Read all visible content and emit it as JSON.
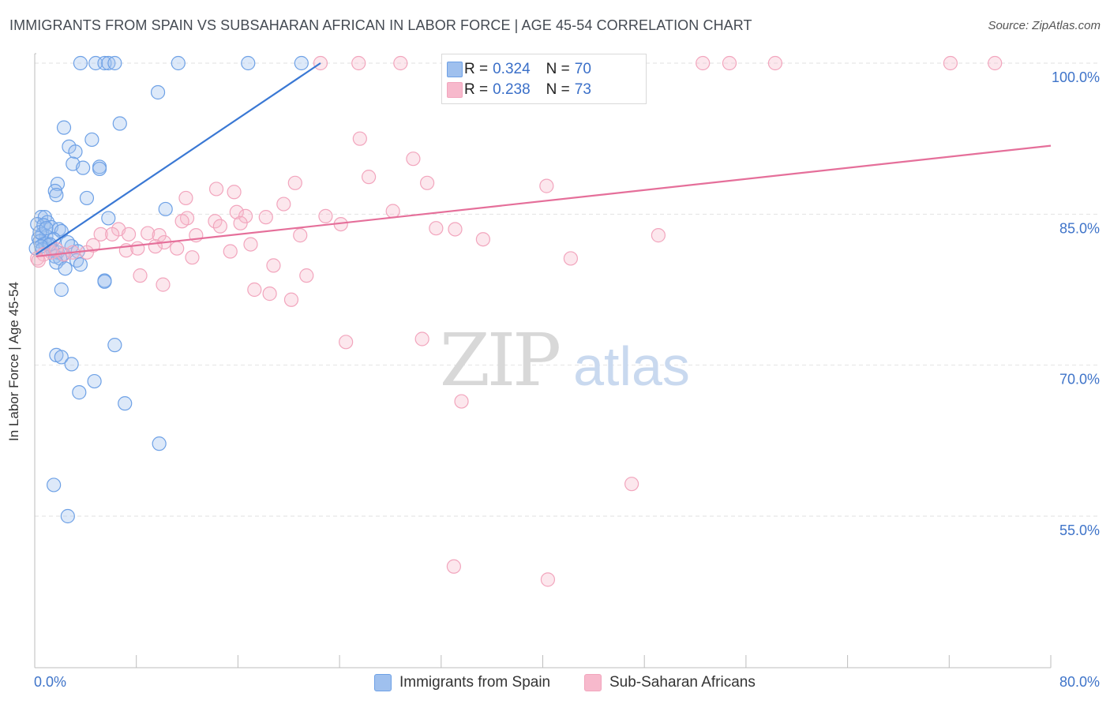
{
  "title": "IMMIGRANTS FROM SPAIN VS SUBSAHARAN AFRICAN IN LABOR FORCE | AGE 45-54 CORRELATION CHART",
  "source": "Source: ZipAtlas.com",
  "watermark": {
    "zip": "ZIP",
    "atlas": "atlas"
  },
  "legend_top": {
    "r_label": "R =",
    "n_label": "N =",
    "rows": [
      {
        "r": "0.324",
        "n": "70",
        "color": "#9fc0ee"
      },
      {
        "r": "0.238",
        "n": "73",
        "color": "#f7b9cc"
      }
    ]
  },
  "legend_bottom": [
    {
      "label": "Immigrants from Spain",
      "color": "#9fc0ee"
    },
    {
      "label": "Sub-Saharan Africans",
      "color": "#f7b9cc"
    }
  ],
  "chart_data": {
    "type": "scatter",
    "title": "IMMIGRANTS FROM SPAIN VS SUBSAHARAN AFRICAN IN LABOR FORCE | AGE 45-54 CORRELATION CHART",
    "xlabel": "",
    "ylabel": "In Labor Force | Age 45-54",
    "xlim": [
      0,
      80
    ],
    "ylim": [
      41,
      101
    ],
    "x_tick_labels": [
      {
        "value": 0,
        "label": "0.0%"
      },
      {
        "value": 80,
        "label": "80.0%"
      }
    ],
    "y_tick_labels": [
      {
        "value": 100,
        "label": "100.0%"
      },
      {
        "value": 85,
        "label": "85.0%"
      },
      {
        "value": 70,
        "label": "70.0%"
      },
      {
        "value": 55,
        "label": "55.0%"
      }
    ],
    "grid": true,
    "series": [
      {
        "name": "Immigrants from Spain",
        "color": "#6ea1e6",
        "trend_color": "#3a78d4",
        "trend": {
          "x": [
            0.1,
            22.5
          ],
          "y": [
            81.0,
            100.0
          ]
        },
        "points": [
          [
            3.6,
            100
          ],
          [
            4.8,
            100
          ],
          [
            5.5,
            100
          ],
          [
            5.8,
            100
          ],
          [
            6.3,
            100
          ],
          [
            11.3,
            100
          ],
          [
            16.8,
            100
          ],
          [
            21.0,
            100
          ],
          [
            9.7,
            97.1
          ],
          [
            6.7,
            94.0
          ],
          [
            2.3,
            93.6
          ],
          [
            4.5,
            92.4
          ],
          [
            2.7,
            91.7
          ],
          [
            3.2,
            91.2
          ],
          [
            3.0,
            90.0
          ],
          [
            5.1,
            89.7
          ],
          [
            3.8,
            89.6
          ],
          [
            5.1,
            89.5
          ],
          [
            1.8,
            88.0
          ],
          [
            1.6,
            87.3
          ],
          [
            1.7,
            86.9
          ],
          [
            4.1,
            86.6
          ],
          [
            10.3,
            85.5
          ],
          [
            0.5,
            84.7
          ],
          [
            0.8,
            84.7
          ],
          [
            5.8,
            84.6
          ],
          [
            1.0,
            84.2
          ],
          [
            0.2,
            84.0
          ],
          [
            0.7,
            83.9
          ],
          [
            1.3,
            83.7
          ],
          [
            1.9,
            83.5
          ],
          [
            2.1,
            83.3
          ],
          [
            0.6,
            83.0
          ],
          [
            0.9,
            82.8
          ],
          [
            0.3,
            82.6
          ],
          [
            1.5,
            82.5
          ],
          [
            0.4,
            82.3
          ],
          [
            0.8,
            82.1
          ],
          [
            1.1,
            81.9
          ],
          [
            2.9,
            81.8
          ],
          [
            0.1,
            81.6
          ],
          [
            0.6,
            81.5
          ],
          [
            1.4,
            81.4
          ],
          [
            3.4,
            81.3
          ],
          [
            1.8,
            81.2
          ],
          [
            2.2,
            81.0
          ],
          [
            1.6,
            80.8
          ],
          [
            2.0,
            80.6
          ],
          [
            3.3,
            80.4
          ],
          [
            1.7,
            80.2
          ],
          [
            3.6,
            80.0
          ],
          [
            2.4,
            79.6
          ],
          [
            5.5,
            78.4
          ],
          [
            5.5,
            78.3
          ],
          [
            2.1,
            77.5
          ],
          [
            6.3,
            72.0
          ],
          [
            1.7,
            71.0
          ],
          [
            2.1,
            70.8
          ],
          [
            2.9,
            70.1
          ],
          [
            4.7,
            68.4
          ],
          [
            3.5,
            67.3
          ],
          [
            7.1,
            66.2
          ],
          [
            9.8,
            62.2
          ],
          [
            1.5,
            58.1
          ],
          [
            2.6,
            55.0
          ],
          [
            0.4,
            83.2
          ],
          [
            1.2,
            82.0
          ],
          [
            0.9,
            83.6
          ],
          [
            0.5,
            81.8
          ],
          [
            2.6,
            82.2
          ]
        ]
      },
      {
        "name": "Sub-Saharan Africans",
        "color": "#f2a5bd",
        "trend_color": "#e56f9a",
        "trend": {
          "x": [
            0.1,
            80.0
          ],
          "y": [
            80.8,
            91.8
          ]
        },
        "points": [
          [
            22.5,
            100
          ],
          [
            25.5,
            100
          ],
          [
            28.8,
            100
          ],
          [
            43.5,
            100
          ],
          [
            52.6,
            100
          ],
          [
            54.7,
            100
          ],
          [
            58.3,
            100
          ],
          [
            72.1,
            100
          ],
          [
            75.6,
            100
          ],
          [
            25.6,
            92.5
          ],
          [
            29.8,
            90.5
          ],
          [
            26.3,
            88.7
          ],
          [
            20.5,
            88.1
          ],
          [
            30.9,
            88.1
          ],
          [
            40.3,
            87.8
          ],
          [
            14.3,
            87.5
          ],
          [
            15.7,
            87.2
          ],
          [
            11.9,
            86.6
          ],
          [
            19.6,
            86.0
          ],
          [
            28.2,
            85.3
          ],
          [
            15.9,
            85.2
          ],
          [
            16.6,
            84.8
          ],
          [
            12.0,
            84.6
          ],
          [
            11.6,
            84.3
          ],
          [
            14.2,
            84.3
          ],
          [
            18.2,
            84.7
          ],
          [
            22.9,
            84.8
          ],
          [
            24.1,
            84.0
          ],
          [
            14.6,
            83.8
          ],
          [
            16.2,
            84.1
          ],
          [
            6.6,
            83.5
          ],
          [
            8.9,
            83.1
          ],
          [
            9.8,
            82.9
          ],
          [
            7.4,
            83.0
          ],
          [
            5.2,
            83.0
          ],
          [
            6.1,
            83.0
          ],
          [
            12.7,
            82.9
          ],
          [
            20.9,
            82.9
          ],
          [
            31.6,
            83.6
          ],
          [
            33.1,
            83.5
          ],
          [
            35.3,
            82.5
          ],
          [
            49.1,
            82.9
          ],
          [
            10.2,
            82.2
          ],
          [
            4.6,
            81.9
          ],
          [
            9.5,
            81.8
          ],
          [
            7.2,
            81.4
          ],
          [
            8.1,
            81.6
          ],
          [
            11.2,
            81.6
          ],
          [
            17.0,
            82.0
          ],
          [
            3.0,
            81.2
          ],
          [
            4.1,
            81.2
          ],
          [
            2.3,
            81.0
          ],
          [
            1.3,
            81.2
          ],
          [
            0.7,
            81.0
          ],
          [
            0.2,
            80.6
          ],
          [
            0.3,
            80.4
          ],
          [
            1.7,
            81.5
          ],
          [
            12.4,
            80.7
          ],
          [
            15.4,
            81.3
          ],
          [
            18.8,
            79.9
          ],
          [
            42.2,
            80.6
          ],
          [
            8.3,
            78.9
          ],
          [
            21.4,
            78.9
          ],
          [
            10.1,
            78.0
          ],
          [
            18.5,
            77.1
          ],
          [
            17.3,
            77.5
          ],
          [
            20.2,
            76.5
          ],
          [
            24.5,
            72.3
          ],
          [
            30.5,
            72.6
          ],
          [
            33.6,
            66.4
          ],
          [
            47.0,
            58.2
          ],
          [
            33.0,
            50.0
          ],
          [
            40.4,
            48.7
          ]
        ]
      }
    ]
  }
}
